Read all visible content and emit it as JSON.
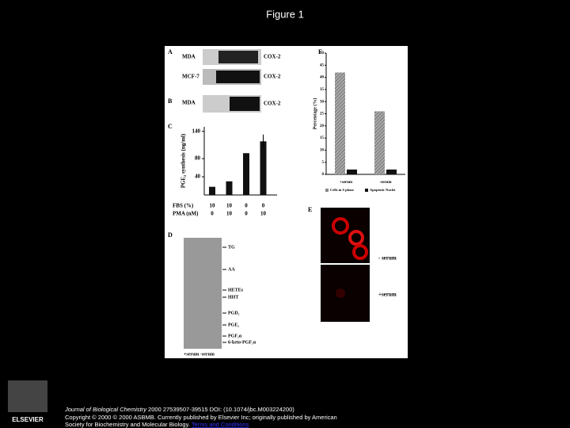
{
  "title": "Figure 1",
  "figure": {
    "panel_a": {
      "label": "A",
      "rows": [
        {
          "cell": "MDA",
          "band": "COX-2"
        },
        {
          "cell": "MCF-7",
          "band": "COX-2"
        }
      ]
    },
    "panel_b": {
      "label": "B",
      "cell": "MDA",
      "band": "COX-2"
    },
    "panel_c": {
      "label": "C",
      "type": "bar",
      "y_label": "PGE₂ synthesis (ng/ml)",
      "ylim": [
        0,
        150
      ],
      "yticks": [
        40,
        80,
        140
      ],
      "values": [
        18,
        30,
        92,
        118
      ],
      "errors": [
        0,
        0,
        0,
        15
      ],
      "color": "#111111",
      "conditions": [
        {
          "name": "FBS (%)",
          "values": [
            10,
            10,
            0,
            0
          ]
        },
        {
          "name": "PMA (nM)",
          "values": [
            0,
            10,
            0,
            10
          ]
        }
      ]
    },
    "panel_d": {
      "label": "D",
      "markers": [
        "TG",
        "AA",
        "HETEs",
        "HHT",
        "PGD₂",
        "PGE₂",
        "PGF₂α",
        "6-keto-PGF₁α"
      ],
      "lanes": "+serum -serum"
    },
    "panel_e": {
      "label": "E",
      "images": [
        "- serum",
        "+serum"
      ]
    },
    "panel_f": {
      "label": "F",
      "type": "bar",
      "y_label": "Percentage (%)",
      "ylim": [
        0,
        50
      ],
      "yticks": [
        0,
        5,
        10,
        15,
        20,
        25,
        30,
        35,
        40,
        45,
        50
      ],
      "categories": [
        "+serum",
        "-serum"
      ],
      "series": [
        {
          "name": "Cells in S phase",
          "color": "#888888",
          "values": [
            42,
            26
          ]
        },
        {
          "name": "Apoptotic Nuclei",
          "color": "#111111",
          "values": [
            2,
            2
          ]
        }
      ]
    }
  },
  "footer": {
    "publisher": "ELSEVIER",
    "journal": "Journal of Biological Chemistry",
    "citation": " 2000 27539507-39515 DOI: (10.1074/jbc.M003224200)",
    "copyright": "Copyright © 2000 © 2000 ASBMB. Currently published by Elsevier Inc; originally published by American",
    "society": "Society for Biochemistry and Molecular Biology.",
    "link": "Terms and Conditions"
  }
}
